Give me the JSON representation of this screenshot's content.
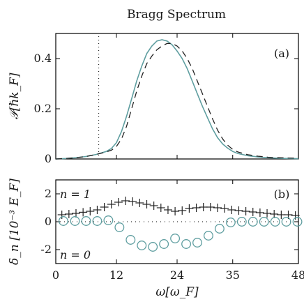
{
  "chart_data": [
    {
      "type": "line",
      "panel": "(a)",
      "title": "Bragg Spectrum",
      "ylabel": "𝒫[ℏk_F]",
      "xlim": [
        0,
        48
      ],
      "ylim": [
        0,
        0.5
      ],
      "y_ticks": [
        "0",
        "0.2",
        "0.4"
      ],
      "y_tick_values": [
        0,
        0.2,
        0.4
      ],
      "vertical_marker_x": 8.5,
      "series": [
        {
          "style": "solid",
          "color": "#5f9ea0",
          "x": [
            0,
            2,
            4,
            6,
            8,
            10,
            11,
            12,
            13,
            14,
            15,
            16,
            17,
            18,
            19,
            20,
            21,
            22,
            23,
            24,
            25,
            26,
            27,
            28,
            29,
            30,
            31,
            32,
            33,
            34,
            35,
            36,
            38,
            40,
            42,
            44,
            46,
            48
          ],
          "y": [
            0,
            0.002,
            0.005,
            0.01,
            0.018,
            0.03,
            0.042,
            0.065,
            0.11,
            0.17,
            0.24,
            0.31,
            0.37,
            0.42,
            0.45,
            0.47,
            0.475,
            0.47,
            0.455,
            0.43,
            0.4,
            0.36,
            0.31,
            0.26,
            0.21,
            0.165,
            0.12,
            0.085,
            0.06,
            0.043,
            0.03,
            0.022,
            0.013,
            0.008,
            0.005,
            0.003,
            0.002,
            0.001
          ]
        },
        {
          "style": "dashed",
          "color": "#222222",
          "x": [
            0,
            2,
            4,
            6,
            8,
            10,
            11,
            12,
            13,
            14,
            15,
            16,
            17,
            18,
            19,
            20,
            21,
            22,
            23,
            24,
            25,
            26,
            27,
            28,
            29,
            30,
            31,
            32,
            33,
            34,
            35,
            36,
            38,
            40,
            42,
            44,
            46,
            48
          ],
          "y": [
            0,
            0.002,
            0.005,
            0.01,
            0.018,
            0.028,
            0.035,
            0.05,
            0.08,
            0.13,
            0.2,
            0.27,
            0.33,
            0.38,
            0.41,
            0.435,
            0.45,
            0.46,
            0.46,
            0.45,
            0.43,
            0.4,
            0.36,
            0.31,
            0.26,
            0.21,
            0.16,
            0.115,
            0.08,
            0.055,
            0.038,
            0.028,
            0.017,
            0.011,
            0.007,
            0.005,
            0.004,
            0.003
          ]
        }
      ],
      "annotation": "(a)"
    },
    {
      "type": "scatter",
      "panel": "(b)",
      "xlabel": "ω[ω_F]",
      "ylabel": "δ_n [10⁻³ E_F]",
      "xlim": [
        0,
        48
      ],
      "ylim": [
        -3,
        3
      ],
      "x_ticks": [
        "0",
        "12",
        "24",
        "35",
        "48"
      ],
      "x_tick_values": [
        0,
        12,
        24,
        35,
        48
      ],
      "y_ticks": [
        "-2",
        "0",
        "2"
      ],
      "y_tick_values": [
        -2,
        0,
        2
      ],
      "zero_line": "dotted",
      "series": [
        {
          "label": "n = 1",
          "marker": "+",
          "color": "#222222",
          "x": [
            1.2,
            2.6,
            4.0,
            5.4,
            6.8,
            8.2,
            9.6,
            11.0,
            12.4,
            13.8,
            15.2,
            16.6,
            18.0,
            19.4,
            20.8,
            22.2,
            23.6,
            25.0,
            26.4,
            27.8,
            29.2,
            30.6,
            32.0,
            33.4,
            34.8,
            36.2,
            37.6,
            39.0,
            40.4,
            41.8,
            43.2,
            44.6,
            46.0,
            47.4
          ],
          "y": [
            0.5,
            0.55,
            0.6,
            0.68,
            0.75,
            0.85,
            1.05,
            1.25,
            1.4,
            1.5,
            1.45,
            1.35,
            1.25,
            1.15,
            1.0,
            0.85,
            0.75,
            0.8,
            0.95,
            1.0,
            1.05,
            1.05,
            1.0,
            0.95,
            0.85,
            0.8,
            0.75,
            0.7,
            0.65,
            0.6,
            0.55,
            0.5,
            0.5,
            0.45
          ]
        },
        {
          "label": "n = 0",
          "marker": "o",
          "color": "#5f9ea0",
          "x": [
            1.5,
            3.8,
            6.0,
            8.2,
            10.4,
            12.6,
            14.8,
            17.0,
            19.2,
            21.4,
            23.6,
            25.8,
            28.0,
            30.2,
            32.4,
            34.6,
            36.8,
            39.0,
            41.2,
            43.4,
            45.6,
            47.8
          ],
          "y": [
            0.05,
            0.05,
            0.05,
            0.05,
            0.1,
            -0.4,
            -1.3,
            -1.7,
            -1.8,
            -1.6,
            -1.2,
            -1.6,
            -1.5,
            -1.0,
            -0.5,
            -0.05,
            0.0,
            0.0,
            0.0,
            0.0,
            0.0,
            0.0
          ]
        }
      ],
      "annotation": "(b)",
      "legend_text": [
        "n = 1",
        "n = 0"
      ]
    }
  ]
}
